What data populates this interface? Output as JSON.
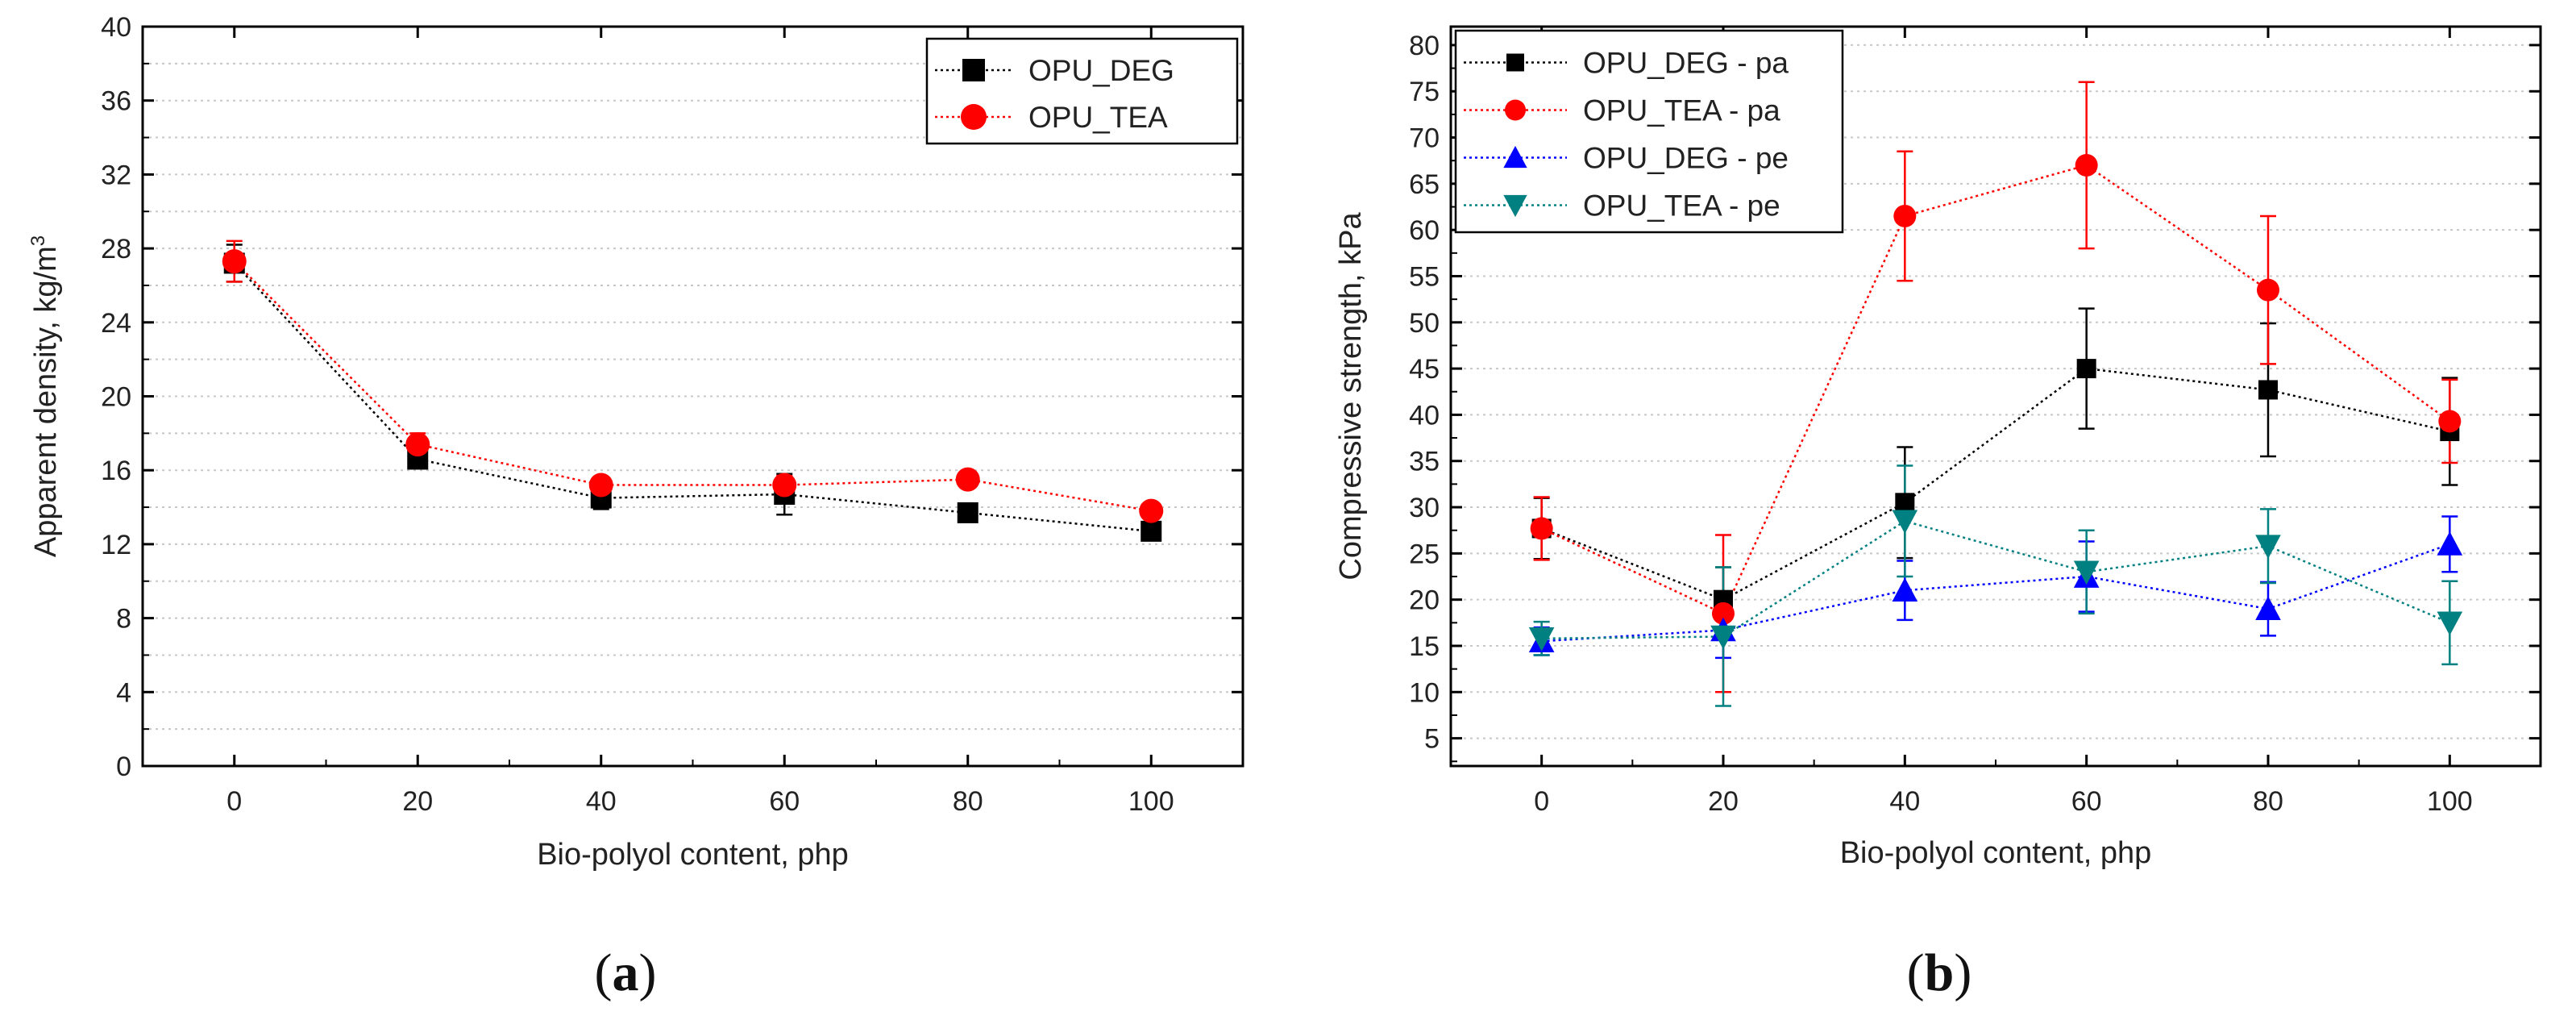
{
  "chart_data": [
    {
      "type": "scatter",
      "panel": "a",
      "xlabel": "Bio-polyol content, php",
      "ylabel": "Apparent density, kg/m",
      "ylabel_superscript": "3",
      "x": [
        0,
        20,
        40,
        60,
        80,
        100
      ],
      "xticks": [
        "0",
        "20",
        "40",
        "60",
        "80",
        "100"
      ],
      "yticks": [
        "0",
        "4",
        "8",
        "12",
        "16",
        "20",
        "24",
        "28",
        "32",
        "36",
        "40"
      ],
      "xlim": [
        -10,
        110
      ],
      "ylim": [
        0,
        40
      ],
      "grid": "horizontal dotted",
      "legend": "top-right",
      "series": [
        {
          "name": "OPU_DEG",
          "marker": "square",
          "color": "#000000",
          "values": [
            27.2,
            16.6,
            14.5,
            14.7,
            13.7,
            12.7
          ],
          "errors": [
            1.0,
            0.5,
            0.6,
            1.1,
            0.4,
            0.4
          ]
        },
        {
          "name": "OPU_TEA",
          "marker": "circle",
          "color": "#ff0000",
          "values": [
            27.3,
            17.4,
            15.2,
            15.2,
            15.5,
            13.8
          ],
          "errors": [
            1.1,
            0.6,
            0.4,
            0.5,
            0.4,
            0.4
          ]
        }
      ]
    },
    {
      "type": "scatter",
      "panel": "b",
      "xlabel": "Bio-polyol content, php",
      "ylabel": "Compressive strength, kPa",
      "x": [
        0,
        20,
        40,
        60,
        80,
        100
      ],
      "xticks": [
        "0",
        "20",
        "40",
        "60",
        "80",
        "100"
      ],
      "yticks": [
        "5",
        "10",
        "15",
        "20",
        "25",
        "30",
        "35",
        "40",
        "45",
        "50",
        "55",
        "60",
        "65",
        "70",
        "75",
        "80"
      ],
      "xlim": [
        -10,
        110
      ],
      "ylim": [
        2,
        82
      ],
      "grid": "horizontal dotted",
      "legend": "top-left",
      "series": [
        {
          "name": "OPU_DEG - pa",
          "marker": "square",
          "color": "#000000",
          "values": [
            27.7,
            20.0,
            30.5,
            45.0,
            42.7,
            38.2
          ],
          "errors": [
            3.3,
            3.5,
            6.0,
            6.5,
            7.2,
            5.8
          ]
        },
        {
          "name": "OPU_TEA - pa",
          "marker": "circle",
          "color": "#ff0000",
          "values": [
            27.7,
            18.5,
            61.5,
            67.0,
            53.5,
            39.3
          ],
          "errors": [
            3.4,
            8.5,
            7.0,
            9.0,
            8.0,
            4.5
          ]
        },
        {
          "name": "OPU_DEG - pe",
          "marker": "triangle-up",
          "color": "#0000ff",
          "values": [
            15.5,
            16.7,
            21.0,
            22.5,
            19.0,
            26.0
          ],
          "errors": [
            1.5,
            3.0,
            3.2,
            3.8,
            2.9,
            3.0
          ]
        },
        {
          "name": "OPU_TEA - pe",
          "marker": "triangle-down",
          "color": "#008080",
          "values": [
            15.8,
            16.0,
            28.5,
            23.0,
            25.8,
            17.5
          ],
          "errors": [
            1.8,
            7.5,
            6.0,
            4.5,
            4.0,
            4.5
          ]
        }
      ]
    }
  ],
  "captions": [
    "(a)",
    "(b)"
  ],
  "caption_letters": [
    "a",
    "b"
  ]
}
